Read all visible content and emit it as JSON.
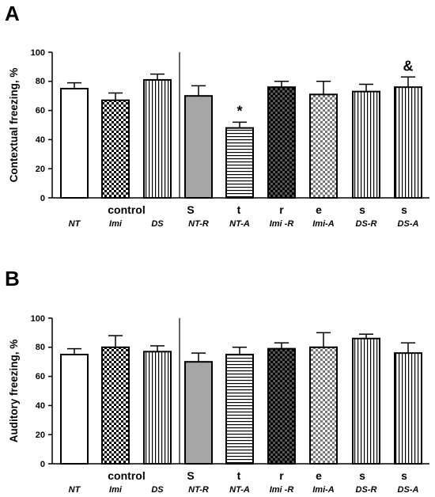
{
  "chart_data": [
    {
      "type": "bar",
      "panel_label": "A",
      "ylabel": "Contextual freezing, %",
      "ylim": [
        0,
        100
      ],
      "yticks": [
        "0",
        "20",
        "40",
        "60",
        "80",
        "100"
      ],
      "categories": [
        "NT",
        "Imi",
        "DS",
        "NT-R",
        "NT-A",
        "Imi -R",
        "Imi-A",
        "DS-R",
        "DS-A"
      ],
      "group_labels": [
        "control",
        "S",
        "t",
        "r",
        "e",
        "s",
        "s"
      ],
      "values": [
        75,
        67,
        81,
        70,
        48,
        76,
        71,
        73,
        76
      ],
      "errors": [
        4,
        5,
        4,
        7,
        4,
        4,
        9,
        5,
        7
      ],
      "annotations": [
        "",
        "",
        "",
        "",
        "*",
        "",
        "",
        "",
        "&"
      ]
    },
    {
      "type": "bar",
      "panel_label": "B",
      "ylabel": "Auditory freezing, %",
      "ylim": [
        0,
        100
      ],
      "yticks": [
        "0",
        "20",
        "40",
        "60",
        "80",
        "100"
      ],
      "categories": [
        "NT",
        "Imi",
        "DS",
        "NT-R",
        "NT-A",
        "Imi -R",
        "Imi-A",
        "DS-R",
        "DS-A"
      ],
      "group_labels": [
        "control",
        "S",
        "t",
        "r",
        "e",
        "s",
        "s"
      ],
      "values": [
        75,
        80,
        77,
        70,
        75,
        79,
        80,
        86,
        76
      ],
      "errors": [
        4,
        8,
        4,
        6,
        5,
        4,
        10,
        3,
        7
      ],
      "annotations": [
        "",
        "",
        "",
        "",
        "",
        "",
        "",
        "",
        ""
      ]
    }
  ]
}
